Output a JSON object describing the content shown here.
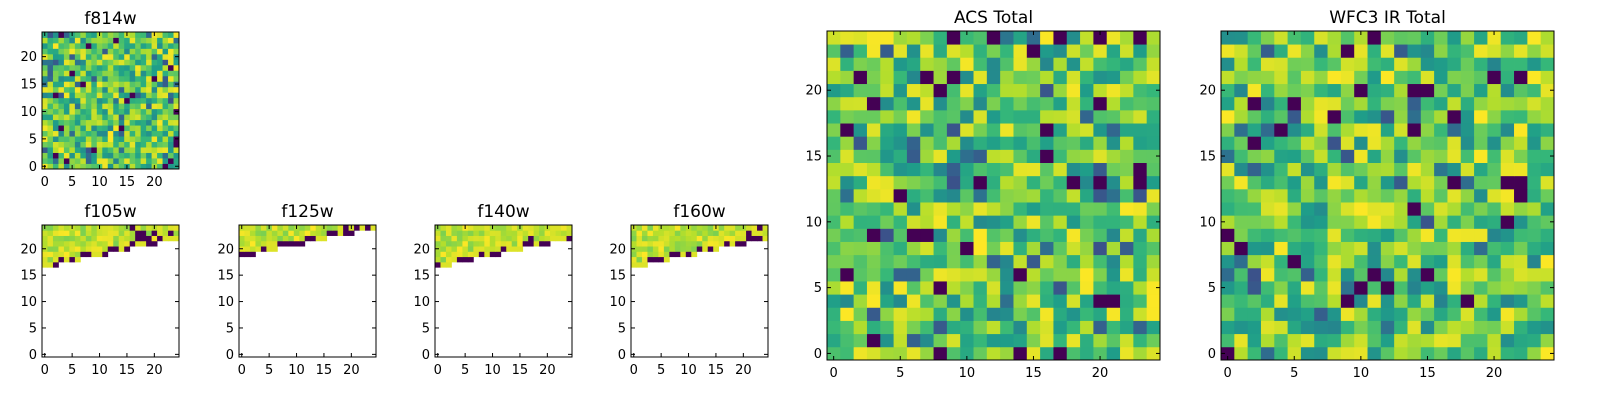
{
  "chart_data": [
    {
      "type": "heatmap",
      "title": "f814w",
      "xlabel": "",
      "ylabel": "",
      "xlim": [
        0,
        25
      ],
      "ylim": [
        0,
        25
      ],
      "xticks": [
        "0",
        "5",
        "10",
        "15",
        "20"
      ],
      "yticks": [
        "0",
        "5",
        "10",
        "15",
        "20"
      ],
      "grid_size": [
        25,
        25
      ],
      "coverage": "full",
      "colormap": "viridis",
      "colors": {
        "low": "#440154",
        "mid": "#21908c",
        "high": "#fde725"
      }
    },
    {
      "type": "heatmap",
      "title": "f105w",
      "xlabel": "",
      "ylabel": "",
      "xlim": [
        0,
        25
      ],
      "ylim": [
        0,
        25
      ],
      "xticks": [
        "0",
        "5",
        "10",
        "15",
        "20"
      ],
      "yticks": [
        "0",
        "5",
        "10",
        "15",
        "20"
      ],
      "grid_size": [
        25,
        25
      ],
      "coverage": "top rows only (y ≥ ~16)",
      "colormap": "viridis"
    },
    {
      "type": "heatmap",
      "title": "f125w",
      "xlabel": "",
      "ylabel": "",
      "xlim": [
        0,
        25
      ],
      "ylim": [
        0,
        25
      ],
      "xticks": [
        "0",
        "5",
        "10",
        "15",
        "20"
      ],
      "yticks": [
        "0",
        "5",
        "10",
        "15",
        "20"
      ],
      "grid_size": [
        25,
        25
      ],
      "coverage": "top rows only (y ≥ ~17)",
      "colormap": "viridis"
    },
    {
      "type": "heatmap",
      "title": "f140w",
      "xlabel": "",
      "ylabel": "",
      "xlim": [
        0,
        25
      ],
      "ylim": [
        0,
        25
      ],
      "xticks": [
        "0",
        "5",
        "10",
        "15",
        "20"
      ],
      "yticks": [
        "0",
        "5",
        "10",
        "15",
        "20"
      ],
      "grid_size": [
        25,
        25
      ],
      "coverage": "top rows only (y ≥ ~16)",
      "colormap": "viridis"
    },
    {
      "type": "heatmap",
      "title": "f160w",
      "xlabel": "",
      "ylabel": "",
      "xlim": [
        0,
        25
      ],
      "ylim": [
        0,
        25
      ],
      "xticks": [
        "0",
        "5",
        "10",
        "15",
        "20"
      ],
      "yticks": [
        "0",
        "5",
        "10",
        "15",
        "20"
      ],
      "grid_size": [
        25,
        25
      ],
      "coverage": "top rows only (y ≥ ~16)",
      "colormap": "viridis"
    },
    {
      "type": "heatmap",
      "title": "ACS Total",
      "xlabel": "",
      "ylabel": "",
      "xlim": [
        0,
        25
      ],
      "ylim": [
        0,
        25
      ],
      "xticks": [
        "0",
        "5",
        "10",
        "15",
        "20"
      ],
      "yticks": [
        "0",
        "5",
        "10",
        "15",
        "20"
      ],
      "grid_size": [
        25,
        25
      ],
      "coverage": "full",
      "colormap": "viridis"
    },
    {
      "type": "heatmap",
      "title": "WFC3 IR Total",
      "xlabel": "",
      "ylabel": "",
      "xlim": [
        0,
        25
      ],
      "ylim": [
        0,
        25
      ],
      "xticks": [
        "0",
        "5",
        "10",
        "15",
        "20"
      ],
      "yticks": [
        "0",
        "5",
        "10",
        "15",
        "20"
      ],
      "grid_size": [
        25,
        25
      ],
      "coverage": "full",
      "colormap": "viridis"
    }
  ]
}
